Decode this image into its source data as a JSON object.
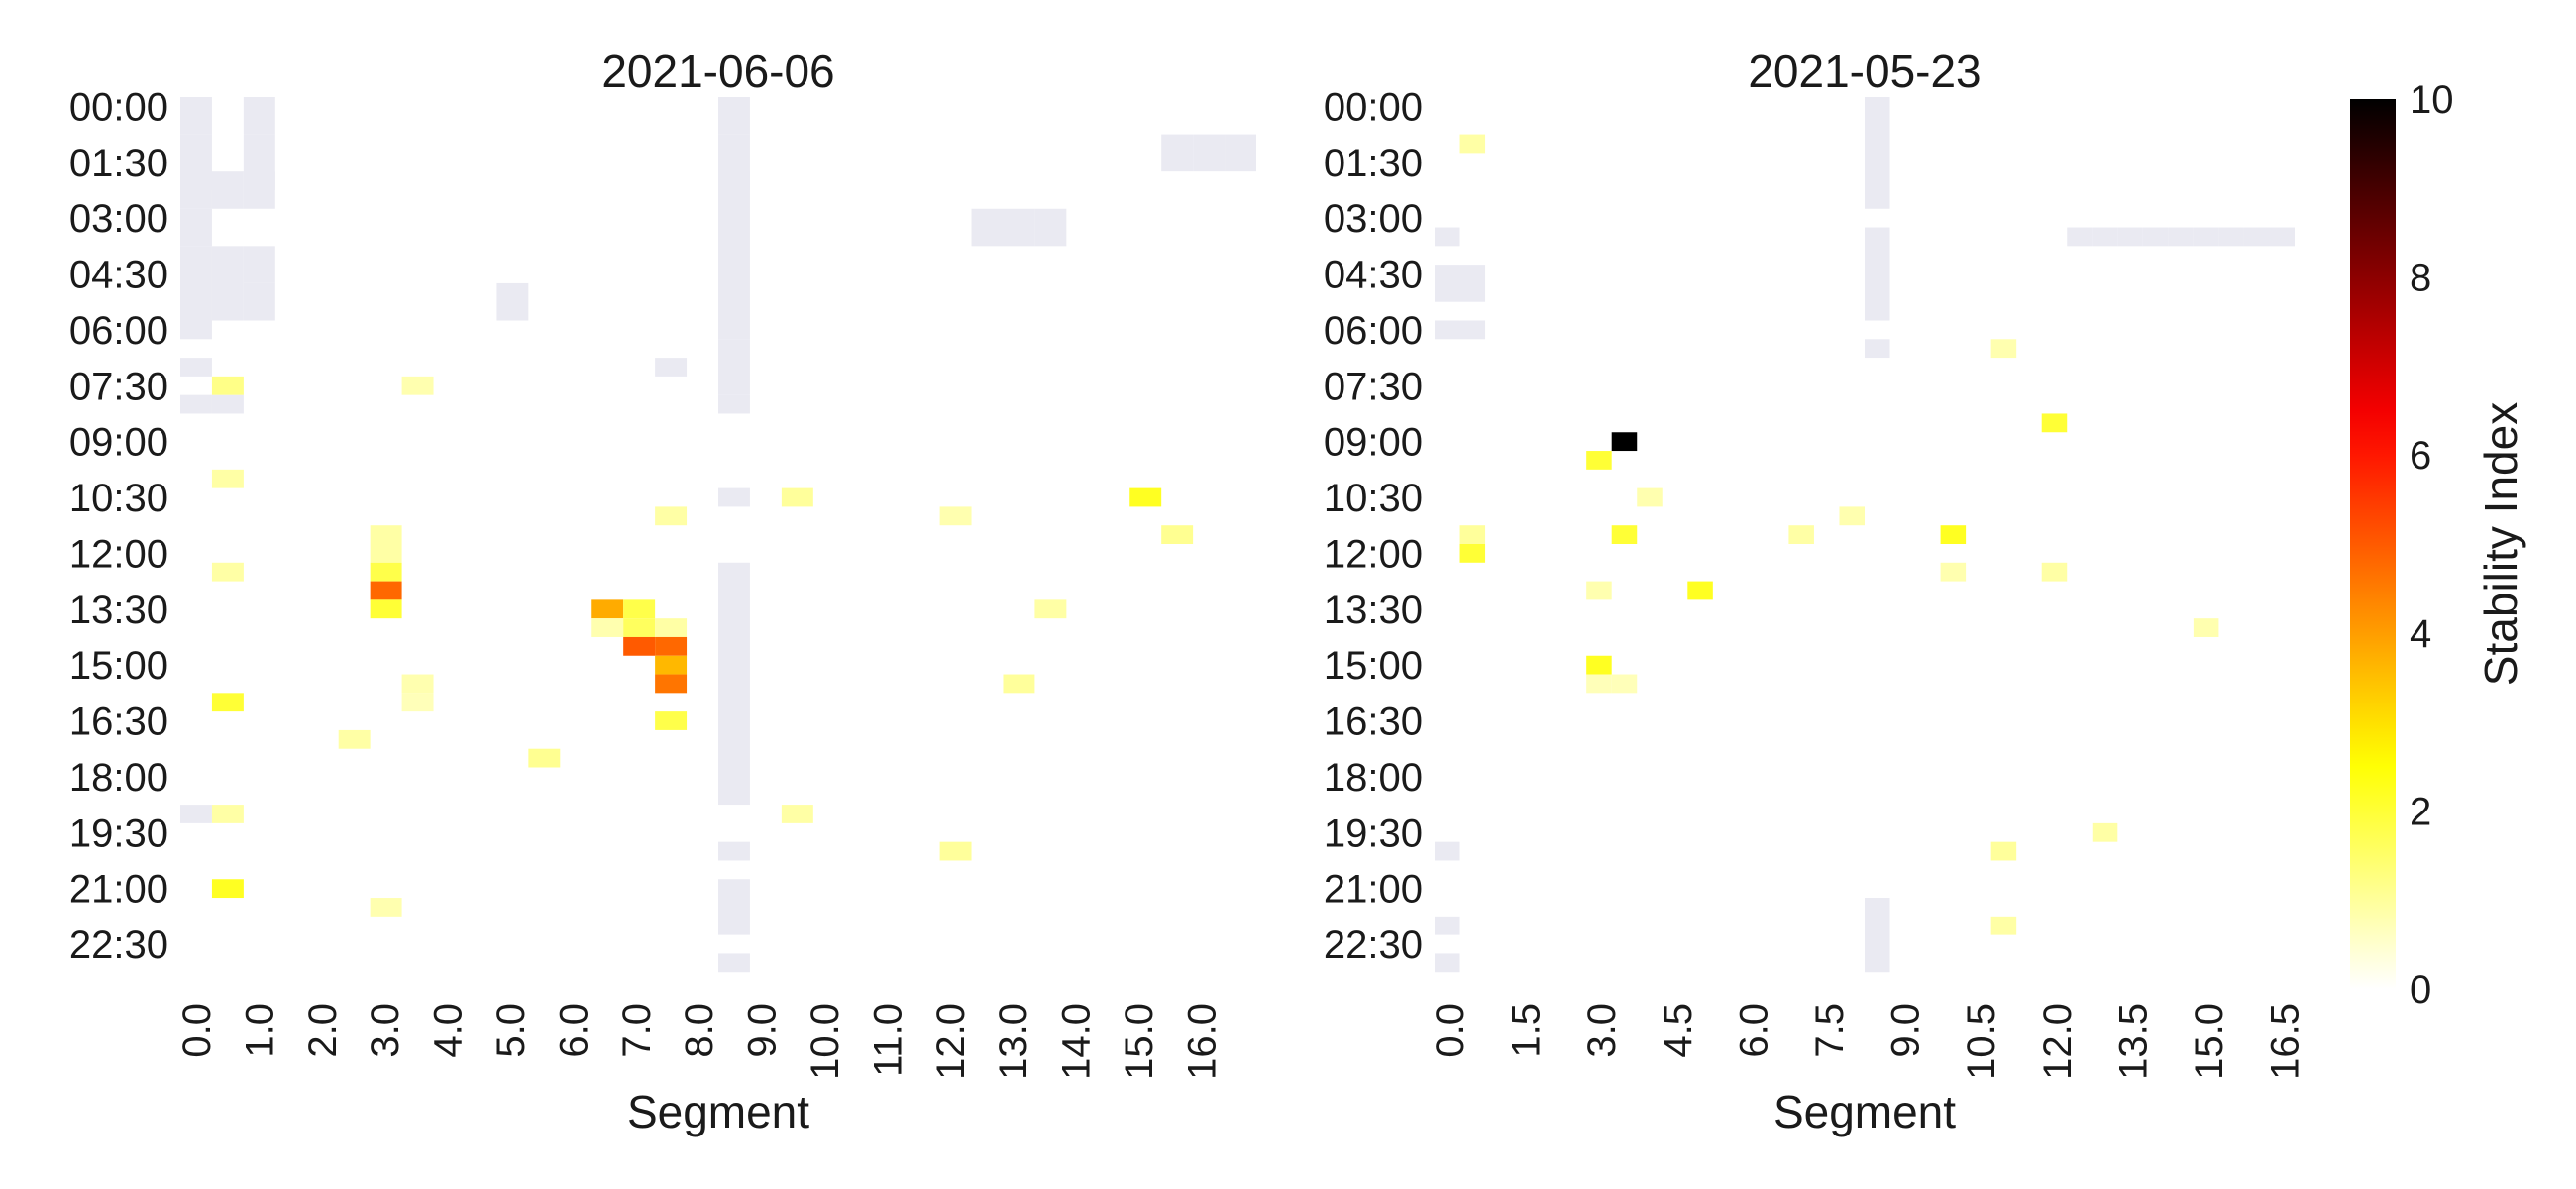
{
  "chart_data": [
    {
      "type": "heatmap",
      "title": "2021-06-06",
      "xlabel": "Segment",
      "ylabel": "",
      "x_tick_labels": [
        "0.0",
        "1.0",
        "2.0",
        "3.0",
        "4.0",
        "5.0",
        "6.0",
        "7.0",
        "8.0",
        "9.0",
        "10.0",
        "11.0",
        "12.0",
        "13.0",
        "14.0",
        "15.0",
        "16.0"
      ],
      "x_range": [
        0,
        17
      ],
      "y_tick_labels": [
        "00:00",
        "01:30",
        "03:00",
        "04:30",
        "06:00",
        "07:30",
        "09:00",
        "10:30",
        "12:00",
        "13:30",
        "15:00",
        "16:30",
        "18:00",
        "19:30",
        "21:00",
        "22:30"
      ],
      "time_step_minutes": 30,
      "missing_color": "#eaeaf2",
      "missing_cells": [
        [
          0.0,
          0,
          0.5
        ],
        [
          1.0,
          0,
          0.5
        ],
        [
          8.5,
          0,
          0.5
        ],
        [
          0.0,
          1,
          2
        ],
        [
          1.0,
          1,
          2
        ],
        [
          8.5,
          1,
          2
        ],
        [
          15.5,
          1,
          1.5
        ],
        [
          16.0,
          1,
          1.5
        ],
        [
          16.5,
          1,
          1.5
        ],
        [
          0.0,
          2,
          2.5
        ],
        [
          0.5,
          2,
          2.5
        ],
        [
          1.0,
          2,
          2.5
        ],
        [
          0.0,
          3,
          3.5
        ],
        [
          8.5,
          2,
          6
        ],
        [
          12.5,
          3,
          3.5
        ],
        [
          13.0,
          3,
          3.5
        ],
        [
          13.5,
          3,
          3.5
        ],
        [
          0.0,
          4,
          5.5
        ],
        [
          0.5,
          4,
          5.5
        ],
        [
          1.0,
          4,
          4.5
        ],
        [
          1.0,
          5,
          5.5
        ],
        [
          5.0,
          5,
          5.5
        ],
        [
          0.0,
          6,
          6
        ],
        [
          8.5,
          6.5,
          7.5
        ],
        [
          0.0,
          7,
          7
        ],
        [
          7.5,
          7,
          7
        ],
        [
          0.0,
          8,
          8
        ],
        [
          0.5,
          8,
          8
        ],
        [
          8.5,
          8,
          8
        ],
        [
          8.5,
          10.5,
          10.5
        ],
        [
          8.5,
          12.5,
          18.5
        ],
        [
          0.0,
          19,
          19
        ],
        [
          8.5,
          20,
          20
        ],
        [
          8.5,
          21,
          22
        ],
        [
          8.5,
          23,
          23
        ]
      ],
      "cells": [
        {
          "x": 0.5,
          "t": "07:30",
          "v": 1.2
        },
        {
          "x": 3.5,
          "t": "07:30",
          "v": 0.8
        },
        {
          "x": 0.5,
          "t": "10:00",
          "v": 0.9
        },
        {
          "x": 9.5,
          "t": "10:30",
          "v": 1.0
        },
        {
          "x": 15.0,
          "t": "10:30",
          "v": 2.2
        },
        {
          "x": 7.5,
          "t": "11:00",
          "v": 0.9
        },
        {
          "x": 12.0,
          "t": "11:00",
          "v": 0.8
        },
        {
          "x": 15.5,
          "t": "11:30",
          "v": 1.1
        },
        {
          "x": 3.0,
          "t": "11:30",
          "v": 0.9
        },
        {
          "x": 3.0,
          "t": "12:00",
          "v": 0.9
        },
        {
          "x": 3.0,
          "t": "12:30",
          "v": 1.8
        },
        {
          "x": 0.5,
          "t": "12:30",
          "v": 0.9
        },
        {
          "x": 3.0,
          "t": "13:00",
          "v": 4.8
        },
        {
          "x": 3.0,
          "t": "13:30",
          "v": 2.0
        },
        {
          "x": 6.5,
          "t": "13:30",
          "v": 3.8
        },
        {
          "x": 7.0,
          "t": "13:30",
          "v": 1.8
        },
        {
          "x": 13.5,
          "t": "13:30",
          "v": 0.9
        },
        {
          "x": 6.5,
          "t": "14:00",
          "v": 0.8
        },
        {
          "x": 7.0,
          "t": "14:00",
          "v": 1.6
        },
        {
          "x": 7.5,
          "t": "14:00",
          "v": 0.9
        },
        {
          "x": 7.0,
          "t": "14:30",
          "v": 5.0
        },
        {
          "x": 7.5,
          "t": "14:30",
          "v": 4.8
        },
        {
          "x": 7.5,
          "t": "15:00",
          "v": 3.6
        },
        {
          "x": 7.5,
          "t": "15:30",
          "v": 4.6
        },
        {
          "x": 13.0,
          "t": "15:30",
          "v": 1.0
        },
        {
          "x": 3.5,
          "t": "15:30",
          "v": 0.8
        },
        {
          "x": 3.5,
          "t": "16:00",
          "v": 0.7
        },
        {
          "x": 0.5,
          "t": "16:00",
          "v": 2.0
        },
        {
          "x": 7.5,
          "t": "16:30",
          "v": 1.8
        },
        {
          "x": 2.5,
          "t": "17:00",
          "v": 0.9
        },
        {
          "x": 5.5,
          "t": "17:30",
          "v": 1.1
        },
        {
          "x": 0.5,
          "t": "19:00",
          "v": 0.9
        },
        {
          "x": 9.5,
          "t": "19:00",
          "v": 0.9
        },
        {
          "x": 12.0,
          "t": "20:00",
          "v": 1.0
        },
        {
          "x": 0.5,
          "t": "21:00",
          "v": 2.2
        },
        {
          "x": 3.0,
          "t": "21:30",
          "v": 0.8
        }
      ]
    },
    {
      "type": "heatmap",
      "title": "2021-05-23",
      "xlabel": "Segment",
      "ylabel": "",
      "x_tick_labels": [
        "0.0",
        "1.5",
        "3.0",
        "4.5",
        "6.0",
        "7.5",
        "9.0",
        "10.5",
        "12.0",
        "13.5",
        "15.0",
        "16.5"
      ],
      "x_range": [
        0,
        17
      ],
      "y_tick_labels": [
        "00:00",
        "01:30",
        "03:00",
        "04:30",
        "06:00",
        "07:30",
        "09:00",
        "10:30",
        "12:00",
        "13:30",
        "15:00",
        "16:30",
        "18:00",
        "19:30",
        "21:00",
        "22:30"
      ],
      "time_step_minutes": 30,
      "missing_color": "#eaeaf2",
      "missing_cells": [
        [
          8.5,
          0,
          2.5
        ],
        [
          8.5,
          3.5,
          5.5
        ],
        [
          8.5,
          6.5,
          6.5
        ],
        [
          0.0,
          3.5,
          3.5
        ],
        [
          0.0,
          4.5,
          5.0
        ],
        [
          0.5,
          4.5,
          5.0
        ],
        [
          0.0,
          6,
          6
        ],
        [
          0.5,
          6,
          6
        ],
        [
          12.5,
          3.5,
          3.5
        ],
        [
          13.0,
          3.5,
          3.5
        ],
        [
          13.5,
          3.5,
          3.5
        ],
        [
          14.0,
          3.5,
          3.5
        ],
        [
          14.5,
          3.5,
          3.5
        ],
        [
          15.0,
          3.5,
          3.5
        ],
        [
          15.5,
          3.5,
          3.5
        ],
        [
          16.0,
          3.5,
          3.5
        ],
        [
          16.5,
          3.5,
          3.5
        ],
        [
          0.0,
          20,
          20
        ],
        [
          0.0,
          22,
          22
        ],
        [
          0.0,
          23,
          23
        ],
        [
          8.5,
          21.5,
          23
        ]
      ],
      "cells": [
        {
          "x": 0.5,
          "t": "01:00",
          "v": 0.9
        },
        {
          "x": 11.0,
          "t": "06:30",
          "v": 0.8
        },
        {
          "x": 12.0,
          "t": "08:30",
          "v": 2.0
        },
        {
          "x": 3.5,
          "t": "09:00",
          "v": 10.0
        },
        {
          "x": 3.0,
          "t": "09:30",
          "v": 2.0
        },
        {
          "x": 4.0,
          "t": "10:30",
          "v": 0.8
        },
        {
          "x": 8.0,
          "t": "11:00",
          "v": 0.8
        },
        {
          "x": 0.5,
          "t": "11:30",
          "v": 1.0
        },
        {
          "x": 3.5,
          "t": "11:30",
          "v": 2.0
        },
        {
          "x": 7.0,
          "t": "11:30",
          "v": 0.9
        },
        {
          "x": 10.0,
          "t": "11:30",
          "v": 2.2
        },
        {
          "x": 0.5,
          "t": "12:00",
          "v": 2.0
        },
        {
          "x": 10.0,
          "t": "12:30",
          "v": 0.8
        },
        {
          "x": 12.0,
          "t": "12:30",
          "v": 0.9
        },
        {
          "x": 3.0,
          "t": "13:00",
          "v": 0.8
        },
        {
          "x": 5.0,
          "t": "13:00",
          "v": 2.2
        },
        {
          "x": 15.0,
          "t": "14:00",
          "v": 0.8
        },
        {
          "x": 3.0,
          "t": "15:00",
          "v": 2.2
        },
        {
          "x": 3.0,
          "t": "15:30",
          "v": 0.7
        },
        {
          "x": 3.5,
          "t": "15:30",
          "v": 0.7
        },
        {
          "x": 13.0,
          "t": "19:30",
          "v": 0.9
        },
        {
          "x": 11.0,
          "t": "20:00",
          "v": 1.0
        },
        {
          "x": 11.0,
          "t": "22:00",
          "v": 0.9
        }
      ]
    }
  ],
  "colorbar": {
    "label": "Stability Index",
    "ticks": [
      "0",
      "2",
      "4",
      "6",
      "8",
      "10"
    ],
    "vmin": 0,
    "vmax": 10,
    "colormap": "hot_r"
  }
}
